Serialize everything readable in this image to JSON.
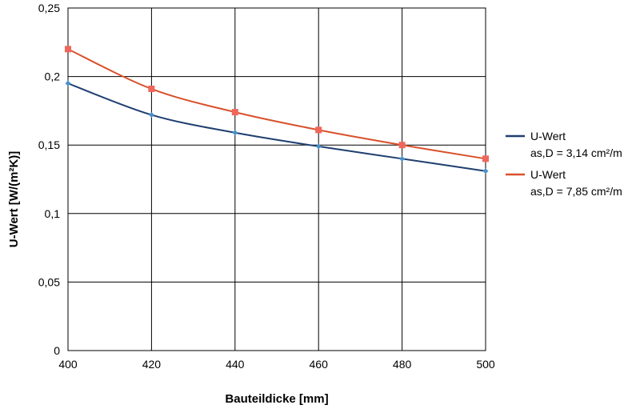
{
  "chart_data": {
    "type": "line",
    "xlabel": "Bauteildicke [mm]",
    "ylabel": "U-Wert [W/(m²K)]",
    "x": [
      400,
      420,
      440,
      460,
      480,
      500
    ],
    "xlim": [
      400,
      500
    ],
    "ylim": [
      0,
      0.25
    ],
    "x_ticks": [
      400,
      420,
      440,
      460,
      480,
      500
    ],
    "x_tick_labels": [
      "400",
      "420",
      "440",
      "460",
      "480",
      "500"
    ],
    "y_ticks": [
      0,
      0.05,
      0.1,
      0.15,
      0.2,
      0.25
    ],
    "y_tick_labels": [
      "0",
      "0,05",
      "0,1",
      "0,15",
      "0,2",
      "0,25"
    ],
    "grid": true,
    "legend_position": "right",
    "series": [
      {
        "name_lines": [
          "U-Wert",
          "as,D = 3,14 cm²/m"
        ],
        "values": [
          0.195,
          0.172,
          0.159,
          0.149,
          0.14,
          0.131
        ],
        "color": "#1f3f70",
        "marker_color": "#4a90c8",
        "marker": "diamond"
      },
      {
        "name_lines": [
          "U-Wert",
          "as,D = 7,85 cm²/m"
        ],
        "values": [
          0.22,
          0.191,
          0.174,
          0.161,
          0.15,
          0.14
        ],
        "color": "#d9512c",
        "marker_color": "#f0665a",
        "marker": "square"
      }
    ]
  }
}
